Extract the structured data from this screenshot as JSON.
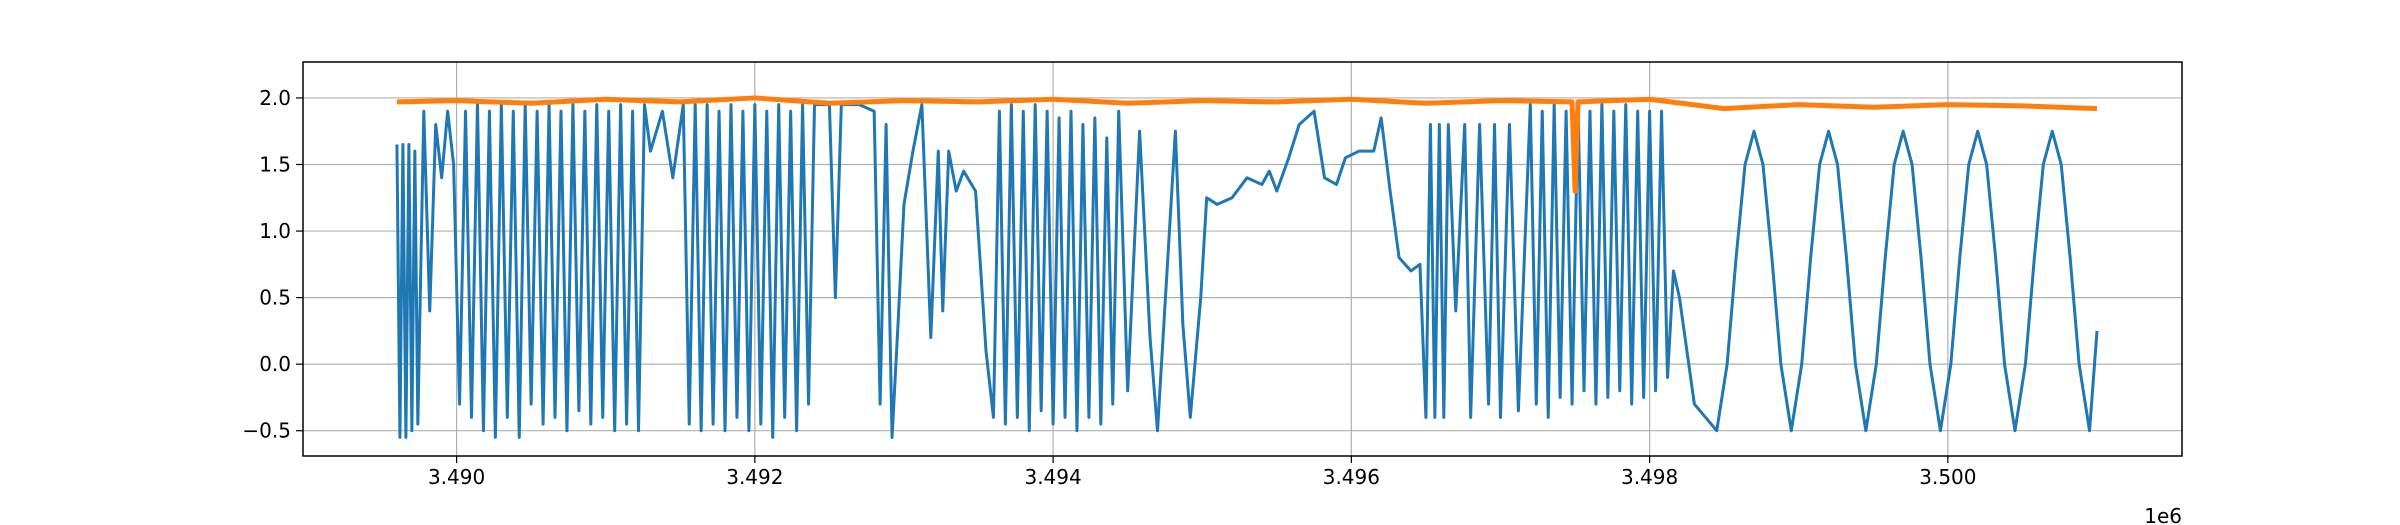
{
  "chart_data": {
    "type": "line",
    "x_offset_label": "1e6",
    "xlim": [
      3488970,
      3501570
    ],
    "ylim": [
      -0.69,
      2.27
    ],
    "xticks": [
      {
        "value": 3490000,
        "label": "3.490"
      },
      {
        "value": 3492000,
        "label": "3.492"
      },
      {
        "value": 3494000,
        "label": "3.494"
      },
      {
        "value": 3496000,
        "label": "3.496"
      },
      {
        "value": 3498000,
        "label": "3.498"
      },
      {
        "value": 3500000,
        "label": "3.500"
      }
    ],
    "yticks": [
      {
        "value": -0.5,
        "label": "−0.5"
      },
      {
        "value": 0,
        "label": "0.0"
      },
      0.5,
      {
        "value": 1,
        "label": "1.0"
      },
      1.5,
      {
        "value": 2,
        "label": "2.0"
      }
    ],
    "grid": true,
    "series": [
      {
        "color": "#1f77b4",
        "width": 3,
        "x": [
          3489600,
          3489620,
          3489640,
          3489660,
          3489680,
          3489700,
          3489720,
          3489740,
          3489780,
          3489820,
          3489860,
          3489900,
          3489940,
          3489980,
          3490020,
          3490060,
          3490100,
          3490140,
          3490180,
          3490220,
          3490260,
          3490300,
          3490340,
          3490380,
          3490420,
          3490460,
          3490500,
          3490540,
          3490580,
          3490620,
          3490660,
          3490700,
          3490740,
          3490780,
          3490820,
          3490860,
          3490900,
          3490940,
          3490980,
          3491020,
          3491060,
          3491100,
          3491140,
          3491180,
          3491220,
          3491260,
          3491300,
          3491380,
          3491450,
          3491520,
          3491560,
          3491600,
          3491640,
          3491680,
          3491720,
          3491760,
          3491800,
          3491840,
          3491880,
          3491920,
          3491960,
          3492000,
          3492040,
          3492080,
          3492120,
          3492160,
          3492200,
          3492240,
          3492280,
          3492320,
          3492360,
          3492400,
          3492500,
          3492540,
          3492580,
          3492700,
          3492800,
          3492840,
          3492880,
          3492920,
          3492960,
          3493000,
          3493060,
          3493120,
          3493180,
          3493230,
          3493260,
          3493300,
          3493350,
          3493400,
          3493480,
          3493550,
          3493600,
          3493640,
          3493680,
          3493720,
          3493760,
          3493800,
          3493840,
          3493880,
          3493920,
          3493960,
          3494000,
          3494040,
          3494080,
          3494120,
          3494160,
          3494200,
          3494240,
          3494280,
          3494320,
          3494360,
          3494400,
          3494440,
          3494500,
          3494580,
          3494650,
          3494700,
          3494780,
          3494820,
          3494870,
          3494920,
          3494990,
          3495030,
          3495100,
          3495200,
          3495300,
          3495400,
          3495450,
          3495500,
          3495580,
          3495650,
          3495750,
          3495820,
          3495900,
          3495960,
          3496050,
          3496150,
          3496200,
          3496260,
          3496320,
          3496400,
          3496460,
          3496500,
          3496530,
          3496560,
          3496590,
          3496620,
          3496650,
          3496700,
          3496760,
          3496800,
          3496860,
          3496920,
          3496960,
          3497000,
          3497060,
          3497120,
          3497200,
          3497240,
          3497280,
          3497320,
          3497360,
          3497400,
          3497440,
          3497480,
          3497520,
          3497560,
          3497600,
          3497640,
          3497680,
          3497720,
          3497760,
          3497800,
          3497840,
          3497880,
          3497920,
          3497960,
          3498000,
          3498040,
          3498080,
          3498120,
          3498160,
          3498200,
          3498300,
          3498450,
          3498520,
          3498580,
          3498640,
          3498700,
          3498760,
          3498820,
          3498880,
          3498950,
          3499020,
          3499080,
          3499140,
          3499200,
          3499260,
          3499320,
          3499380,
          3499450,
          3499520,
          3499580,
          3499640,
          3499700,
          3499760,
          3499820,
          3499880,
          3499950,
          3500020,
          3500080,
          3500140,
          3500200,
          3500260,
          3500320,
          3500380,
          3500450,
          3500520,
          3500580,
          3500640,
          3500700,
          3500760,
          3500820,
          3500880,
          3500950,
          3501000
        ],
        "values": [
          1.65,
          -0.55,
          1.65,
          -0.55,
          1.65,
          -0.5,
          1.6,
          -0.45,
          1.9,
          0.4,
          1.8,
          1.4,
          1.9,
          1.5,
          -0.3,
          1.9,
          -0.4,
          1.95,
          -0.5,
          1.9,
          -0.55,
          1.95,
          -0.4,
          1.9,
          -0.55,
          1.95,
          -0.3,
          1.9,
          -0.45,
          1.95,
          -0.4,
          1.9,
          -0.5,
          1.95,
          -0.35,
          1.9,
          -0.45,
          1.95,
          -0.4,
          1.9,
          -0.5,
          1.95,
          -0.45,
          1.9,
          -0.5,
          1.95,
          1.6,
          1.9,
          1.4,
          1.95,
          -0.45,
          1.95,
          -0.5,
          1.95,
          -0.45,
          1.9,
          -0.5,
          1.95,
          -0.4,
          1.9,
          -0.5,
          1.95,
          -0.45,
          1.9,
          -0.55,
          1.95,
          -0.4,
          1.9,
          -0.5,
          1.95,
          -0.3,
          1.95,
          1.95,
          0.5,
          1.95,
          1.95,
          1.9,
          -0.3,
          1.8,
          -0.55,
          0.3,
          1.2,
          1.6,
          1.95,
          0.2,
          1.6,
          0.4,
          1.6,
          1.3,
          1.45,
          1.3,
          0.1,
          -0.4,
          1.9,
          -0.45,
          1.95,
          -0.4,
          1.9,
          -0.5,
          1.95,
          -0.35,
          1.9,
          -0.45,
          1.85,
          -0.4,
          1.9,
          -0.5,
          1.8,
          -0.4,
          1.85,
          -0.45,
          1.7,
          -0.3,
          1.9,
          -0.2,
          1.75,
          0.2,
          -0.5,
          1.0,
          1.75,
          0.3,
          -0.4,
          0.5,
          1.25,
          1.2,
          1.25,
          1.4,
          1.35,
          1.45,
          1.3,
          1.55,
          1.8,
          1.9,
          1.4,
          1.35,
          1.55,
          1.6,
          1.6,
          1.85,
          1.3,
          0.8,
          0.7,
          0.75,
          -0.4,
          1.8,
          -0.4,
          1.8,
          -0.4,
          1.8,
          0.4,
          1.8,
          -0.4,
          1.8,
          -0.3,
          1.8,
          -0.4,
          1.8,
          -0.35,
          1.95,
          -0.3,
          1.9,
          -0.4,
          1.95,
          -0.25,
          1.9,
          -0.3,
          1.95,
          -0.2,
          1.9,
          -0.3,
          1.95,
          -0.25,
          1.9,
          -0.2,
          1.95,
          -0.3,
          1.9,
          -0.25,
          1.9,
          -0.2,
          1.9,
          -0.1,
          0.7,
          0.5,
          -0.3,
          -0.5,
          0.0,
          0.8,
          1.5,
          1.75,
          1.5,
          0.8,
          0.0,
          -0.5,
          0.0,
          0.8,
          1.5,
          1.75,
          1.5,
          0.8,
          0.0,
          -0.5,
          0.0,
          0.8,
          1.5,
          1.75,
          1.5,
          0.8,
          0.0,
          -0.5,
          0.0,
          0.8,
          1.5,
          1.75,
          1.5,
          0.8,
          0.0,
          -0.5,
          0.0,
          0.8,
          1.5,
          1.75,
          1.5,
          0.8,
          0.0,
          -0.5,
          0.25
        ]
      },
      {
        "color": "#ff7f0e",
        "width": 5,
        "x": [
          3489600,
          3490000,
          3490500,
          3491000,
          3491500,
          3492000,
          3492500,
          3493000,
          3493500,
          3494000,
          3494500,
          3495000,
          3495500,
          3496000,
          3496500,
          3497000,
          3497480,
          3497500,
          3497520,
          3498000,
          3498500,
          3499000,
          3499500,
          3500000,
          3500500,
          3501000
        ],
        "values": [
          1.97,
          1.98,
          1.96,
          1.99,
          1.97,
          2.0,
          1.96,
          1.98,
          1.97,
          1.99,
          1.96,
          1.98,
          1.97,
          1.99,
          1.96,
          1.98,
          1.97,
          1.3,
          1.97,
          1.99,
          1.92,
          1.95,
          1.93,
          1.95,
          1.94,
          1.92
        ]
      }
    ]
  }
}
